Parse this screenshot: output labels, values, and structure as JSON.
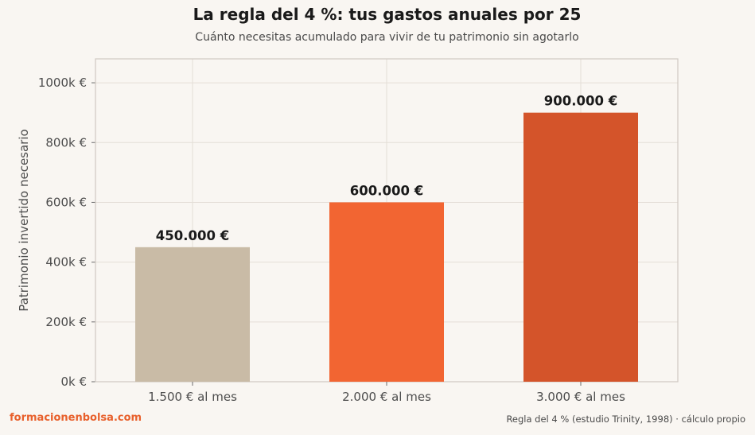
{
  "chart_data": {
    "type": "bar",
    "title": "La regla del 4 %: tus gastos anuales por 25",
    "subtitle": "Cuánto necesitas acumulado para vivir de tu patrimonio sin agotarlo",
    "ylabel": "Patrimonio invertido necesario",
    "xlabel": "",
    "categories": [
      "1.500 € al mes",
      "2.000 € al mes",
      "3.000 € al mes"
    ],
    "values": [
      450000,
      600000,
      900000
    ],
    "value_labels": [
      "450.000 €",
      "600.000 €",
      "900.000 €"
    ],
    "bar_colors": [
      "#c9bba6",
      "#f26532",
      "#d4542a"
    ],
    "ylim": [
      0,
      1080000
    ],
    "yticks": [
      0,
      200000,
      400000,
      600000,
      800000,
      1000000
    ],
    "ytick_labels": [
      "0k €",
      "200k €",
      "400k €",
      "600k €",
      "800k €",
      "1000k €"
    ],
    "grid": true,
    "legend": "none"
  },
  "footer": {
    "source_brand": "formacionenbolsa.com",
    "note": "Regla del 4 % (estudio Trinity, 1998) · cálculo propio"
  },
  "colors": {
    "background": "#f9f6f2",
    "brand": "#e8602c",
    "grid": "#e4ded7",
    "axis": "#cfc9c2"
  }
}
